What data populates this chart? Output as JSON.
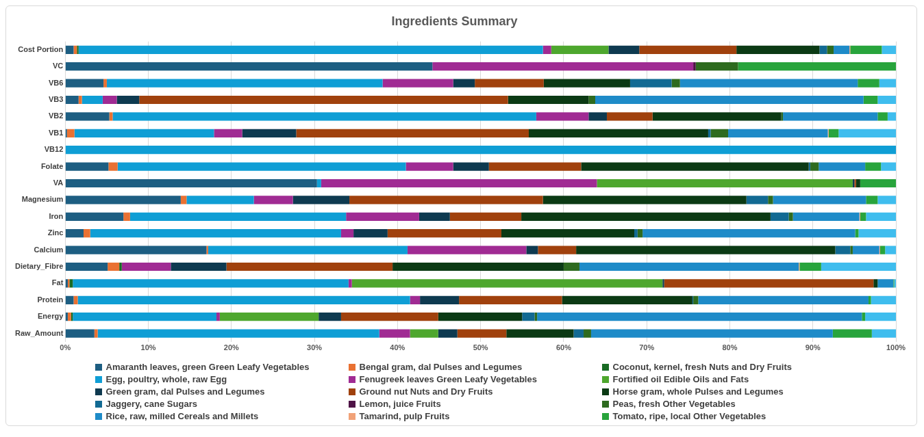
{
  "chart_data": {
    "type": "bar",
    "orientation": "horizontal",
    "stacked": true,
    "title": "Ingredients Summary",
    "categories": [
      "Cost Portion",
      "VC",
      "VB6",
      "VB3",
      "VB2",
      "VB1",
      "VB12",
      "Folate",
      "VA",
      "Magnesium",
      "Iron",
      "Zinc",
      "Calcium",
      "Dietary_Fibre",
      "Fat",
      "Protein",
      "Energy",
      "Raw_Amount"
    ],
    "xlim": [
      0,
      100
    ],
    "xticks": [
      {
        "value": 0,
        "label": "0%"
      },
      {
        "value": 10,
        "label": "10%"
      },
      {
        "value": 20,
        "label": "20%"
      },
      {
        "value": 30,
        "label": "30%"
      },
      {
        "value": 40,
        "label": "40%"
      },
      {
        "value": 50,
        "label": "50%"
      },
      {
        "value": 60,
        "label": "60%"
      },
      {
        "value": 70,
        "label": "70%"
      },
      {
        "value": 80,
        "label": "80%"
      },
      {
        "value": 90,
        "label": "90%"
      },
      {
        "value": 100,
        "label": "100%"
      }
    ],
    "grid": "x",
    "legend": "bottom",
    "series": [
      {
        "name": "Amaranth leaves, green Green Leafy Vegetables",
        "color": "#1d5e82",
        "values": [
          1.0,
          44.2,
          4.6,
          1.6,
          5.3,
          0.2,
          0,
          5.2,
          30.3,
          13.9,
          7.0,
          2.2,
          17.0,
          5.1,
          0.3,
          1.0,
          0.3,
          3.5
        ]
      },
      {
        "name": "Bengal gram, dal Pulses and Legumes",
        "color": "#e97132",
        "values": [
          0.4,
          0,
          0.4,
          0.4,
          0.4,
          0.9,
          0,
          1.1,
          0,
          0.7,
          0.8,
          0.8,
          0.2,
          1.4,
          0.2,
          0.5,
          0.4,
          0.4
        ]
      },
      {
        "name": "Coconut, kernel, fresh Nuts and Dry Fruits",
        "color": "#196b24",
        "values": [
          0.2,
          0,
          0,
          0,
          0,
          0,
          0,
          0,
          0,
          0,
          0,
          0,
          0,
          0.3,
          0.4,
          0,
          0.2,
          0
        ]
      },
      {
        "name": "Egg, poultry, whole, raw Egg",
        "color": "#0f9ed5",
        "values": [
          55.9,
          0,
          33.2,
          2.5,
          51.0,
          16.8,
          100,
          34.7,
          0.5,
          8.1,
          26.0,
          30.2,
          24.0,
          0,
          33.2,
          40.0,
          17.3,
          33.9
        ]
      },
      {
        "name": "Fenugreek leaves Green Leafy Vegetables",
        "color": "#a02b93",
        "values": [
          1.0,
          31.4,
          8.5,
          1.7,
          6.3,
          3.4,
          0,
          5.7,
          33.2,
          4.7,
          8.8,
          1.5,
          14.3,
          5.9,
          0.4,
          1.2,
          0.4,
          3.7
        ]
      },
      {
        "name": "Fortified oil Edible Oils and Fats",
        "color": "#4ea72e",
        "values": [
          6.9,
          0,
          0,
          0,
          0,
          0,
          0,
          0,
          30.8,
          0,
          0,
          0,
          0,
          0,
          37.4,
          0,
          11.9,
          3.4
        ]
      },
      {
        "name": "Green gram, dal Pulses and Legumes",
        "color": "#0e3a50",
        "values": [
          3.7,
          0,
          2.6,
          2.7,
          2.2,
          6.5,
          0,
          4.3,
          0.2,
          6.8,
          3.7,
          4.1,
          1.4,
          6.7,
          0.2,
          4.7,
          2.7,
          2.3
        ]
      },
      {
        "name": "Ground nut Nuts and Dry Fruits",
        "color": "#a0410d",
        "values": [
          11.7,
          0,
          8.3,
          44.4,
          5.5,
          28.0,
          0,
          11.1,
          0.2,
          23.3,
          8.6,
          13.7,
          4.6,
          20.0,
          25.2,
          12.4,
          11.7,
          5.9
        ]
      },
      {
        "name": "Horse gram, whole Pulses and Legumes",
        "color": "#0b3a14",
        "values": [
          10.0,
          0,
          10.4,
          9.7,
          15.5,
          21.6,
          0,
          27.4,
          0.5,
          24.5,
          30.0,
          16.0,
          31.2,
          20.6,
          0.5,
          15.7,
          10.1,
          8.1
        ]
      },
      {
        "name": "Jaggery, cane Sugars",
        "color": "#126a93",
        "values": [
          0.9,
          0,
          5.0,
          0,
          0,
          0.3,
          0,
          0.2,
          0,
          2.6,
          2.2,
          0.4,
          1.8,
          0,
          0,
          0.1,
          1.5,
          1.2
        ]
      },
      {
        "name": "Lemon, juice Fruits",
        "color": "#4f1346",
        "values": [
          0,
          0.3,
          0,
          0,
          0,
          0,
          0,
          0,
          0,
          0,
          0,
          0,
          0,
          0,
          0,
          0,
          0,
          0
        ]
      },
      {
        "name": "Peas, fresh Other Vegetables",
        "color": "#2e6b1f",
        "values": [
          0.8,
          5.1,
          1.0,
          0.8,
          0.2,
          2.1,
          0,
          1.0,
          0,
          0.6,
          0.5,
          0.6,
          0.3,
          1.9,
          0,
          0.6,
          0.3,
          0.9
        ]
      },
      {
        "name": "Rice, raw, milled Cereals and Millets",
        "color": "#1e8bc8",
        "values": [
          1.9,
          0,
          21.4,
          32.3,
          11.4,
          12.0,
          0,
          5.6,
          0,
          11.2,
          8.0,
          25.6,
          3.2,
          26.4,
          1.9,
          20.5,
          39.1,
          29.1
        ]
      },
      {
        "name": "Tamarind, pulp Fruits",
        "color": "#f1a278",
        "values": [
          0.1,
          0,
          0,
          0,
          0,
          0.1,
          0,
          0,
          0,
          0,
          0.1,
          0,
          0.1,
          0.1,
          0,
          0,
          0,
          0
        ]
      },
      {
        "name": "Tomato, ripe, local Other Vegetables",
        "color": "#28a43c",
        "values": [
          3.8,
          19.0,
          2.6,
          1.7,
          1.2,
          1.2,
          0,
          1.9,
          4.3,
          1.4,
          0.7,
          0.4,
          0.6,
          2.6,
          0.1,
          0.3,
          0.4,
          4.7
        ]
      },
      {
        "color": "#3fbdee",
        "values": [
          1.7,
          0,
          2.0,
          2.2,
          1.0,
          6.9,
          0,
          1.8,
          0,
          2.2,
          3.6,
          4.5,
          1.3,
          9.0,
          0.2,
          3.0,
          3.7,
          2.9
        ]
      }
    ]
  }
}
